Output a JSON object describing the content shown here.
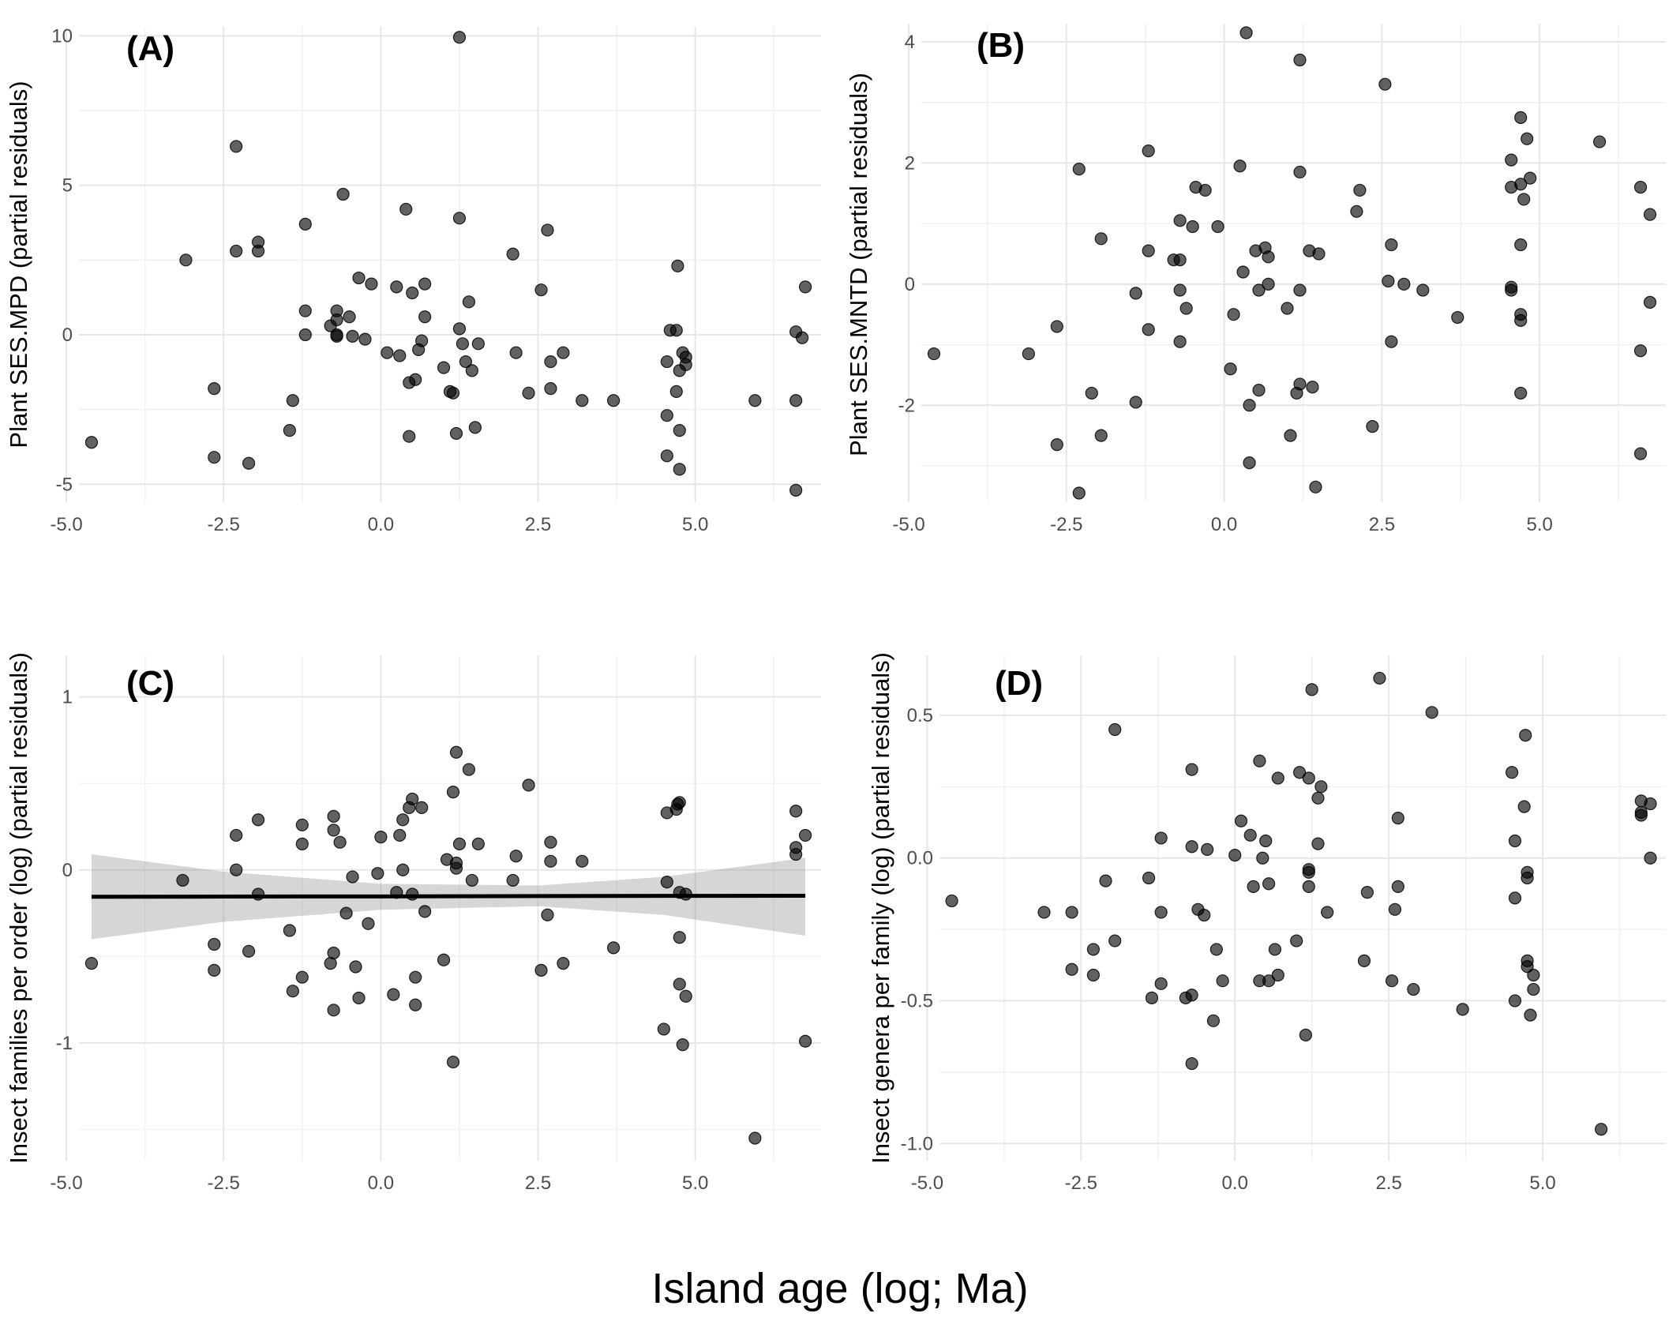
{
  "figure": {
    "xlabel": "Island age (log; Ma)"
  },
  "chart_data": [
    {
      "type": "scatter",
      "panel_label": "(A)",
      "ylabel": "Plant SES.MPD (partial residuals)",
      "xlim": [
        -4.8,
        7.0
      ],
      "ylim": [
        -5.6,
        10.3
      ],
      "xticks": [
        -5.0,
        -2.5,
        0.0,
        2.5,
        5.0
      ],
      "xtick_labels": [
        "-5.0",
        "-2.5",
        "0.0",
        "2.5",
        "5.0"
      ],
      "yticks": [
        -5,
        0,
        5,
        10
      ],
      "ytick_labels": [
        "-5",
        "0",
        "5",
        "10"
      ],
      "grid": true,
      "points": [
        [
          -4.6,
          -3.6
        ],
        [
          -3.1,
          2.5
        ],
        [
          -2.65,
          -1.8
        ],
        [
          -2.65,
          -4.1
        ],
        [
          -2.3,
          6.3
        ],
        [
          -2.3,
          2.8
        ],
        [
          -2.1,
          -4.3
        ],
        [
          -1.95,
          3.1
        ],
        [
          -1.95,
          2.8
        ],
        [
          -1.4,
          -2.2
        ],
        [
          -1.45,
          -3.2
        ],
        [
          -1.2,
          3.7
        ],
        [
          -1.2,
          0.8
        ],
        [
          -1.2,
          0.0
        ],
        [
          -0.8,
          0.3
        ],
        [
          -0.7,
          0.8
        ],
        [
          -0.7,
          0.5
        ],
        [
          -0.7,
          0.0
        ],
        [
          -0.7,
          -0.05
        ],
        [
          -0.6,
          4.7
        ],
        [
          -0.5,
          0.6
        ],
        [
          -0.45,
          -0.05
        ],
        [
          -0.35,
          1.9
        ],
        [
          -0.25,
          -0.15
        ],
        [
          -0.15,
          1.7
        ],
        [
          0.1,
          -0.6
        ],
        [
          0.25,
          1.6
        ],
        [
          0.3,
          -0.7
        ],
        [
          0.4,
          4.2
        ],
        [
          0.45,
          -1.6
        ],
        [
          0.45,
          -3.4
        ],
        [
          0.5,
          1.4
        ],
        [
          0.55,
          -1.5
        ],
        [
          0.6,
          -0.5
        ],
        [
          0.65,
          -0.2
        ],
        [
          0.7,
          0.6
        ],
        [
          0.7,
          1.7
        ],
        [
          1.0,
          -1.1
        ],
        [
          1.1,
          -1.9
        ],
        [
          1.15,
          -1.95
        ],
        [
          1.2,
          -3.3
        ],
        [
          1.25,
          9.95
        ],
        [
          1.25,
          3.9
        ],
        [
          1.25,
          0.2
        ],
        [
          1.3,
          -0.3
        ],
        [
          1.35,
          -0.9
        ],
        [
          1.4,
          1.1
        ],
        [
          1.45,
          -1.2
        ],
        [
          1.5,
          -3.1
        ],
        [
          1.55,
          -0.3
        ],
        [
          2.1,
          2.7
        ],
        [
          2.15,
          -0.6
        ],
        [
          2.35,
          -1.95
        ],
        [
          2.55,
          1.5
        ],
        [
          2.65,
          3.5
        ],
        [
          2.7,
          -1.8
        ],
        [
          2.7,
          -0.9
        ],
        [
          2.9,
          -0.6
        ],
        [
          3.2,
          -2.2
        ],
        [
          3.7,
          -2.2
        ],
        [
          4.55,
          -0.9
        ],
        [
          4.55,
          -2.7
        ],
        [
          4.55,
          -4.05
        ],
        [
          4.6,
          0.15
        ],
        [
          4.7,
          -1.9
        ],
        [
          4.7,
          0.15
        ],
        [
          4.72,
          2.3
        ],
        [
          4.75,
          -3.2
        ],
        [
          4.75,
          -4.5
        ],
        [
          4.75,
          -1.2
        ],
        [
          4.8,
          -0.6
        ],
        [
          4.85,
          -1.0
        ],
        [
          4.85,
          -0.75
        ],
        [
          5.95,
          -2.2
        ],
        [
          6.6,
          -2.2
        ],
        [
          6.6,
          0.1
        ],
        [
          6.6,
          -5.2
        ],
        [
          6.7,
          -0.1
        ],
        [
          6.75,
          1.6
        ]
      ]
    },
    {
      "type": "scatter",
      "panel_label": "(B)",
      "ylabel": "Plant SES.MNTD (partial residuals)",
      "xlim": [
        -4.8,
        7.0
      ],
      "ylim": [
        -3.6,
        4.3
      ],
      "xticks": [
        -5.0,
        -2.5,
        0.0,
        2.5,
        5.0
      ],
      "xtick_labels": [
        "-5.0",
        "-2.5",
        "0.0",
        "2.5",
        "5.0"
      ],
      "yticks": [
        -2,
        0,
        2,
        4
      ],
      "ytick_labels": [
        "-2",
        "0",
        "2",
        "4"
      ],
      "grid": true,
      "points": [
        [
          -4.6,
          -1.15
        ],
        [
          -3.1,
          -1.15
        ],
        [
          -2.65,
          -0.7
        ],
        [
          -2.65,
          -2.65
        ],
        [
          -2.3,
          1.9
        ],
        [
          -2.3,
          -3.45
        ],
        [
          -2.1,
          -1.8
        ],
        [
          -1.95,
          0.75
        ],
        [
          -1.95,
          -2.5
        ],
        [
          -1.4,
          -0.15
        ],
        [
          -1.4,
          -1.95
        ],
        [
          -1.2,
          2.2
        ],
        [
          -1.2,
          0.55
        ],
        [
          -1.2,
          -0.75
        ],
        [
          -0.8,
          0.4
        ],
        [
          -0.7,
          1.05
        ],
        [
          -0.7,
          0.4
        ],
        [
          -0.7,
          -0.1
        ],
        [
          -0.7,
          -0.95
        ],
        [
          -0.6,
          -0.4
        ],
        [
          -0.5,
          0.95
        ],
        [
          -0.45,
          1.6
        ],
        [
          -0.3,
          1.55
        ],
        [
          -0.1,
          0.95
        ],
        [
          0.1,
          -1.4
        ],
        [
          0.15,
          -0.5
        ],
        [
          0.25,
          1.95
        ],
        [
          0.3,
          0.2
        ],
        [
          0.35,
          4.15
        ],
        [
          0.4,
          -2.0
        ],
        [
          0.4,
          -2.95
        ],
        [
          0.5,
          0.55
        ],
        [
          0.55,
          -0.1
        ],
        [
          0.55,
          -1.75
        ],
        [
          0.65,
          0.6
        ],
        [
          0.7,
          0.0
        ],
        [
          0.7,
          0.45
        ],
        [
          1.0,
          -0.4
        ],
        [
          1.05,
          -2.5
        ],
        [
          1.15,
          -1.8
        ],
        [
          1.2,
          -0.1
        ],
        [
          1.2,
          -1.65
        ],
        [
          1.2,
          1.85
        ],
        [
          1.2,
          3.7
        ],
        [
          1.35,
          0.55
        ],
        [
          1.4,
          -1.7
        ],
        [
          1.45,
          -3.35
        ],
        [
          1.5,
          0.5
        ],
        [
          2.1,
          1.2
        ],
        [
          2.15,
          1.55
        ],
        [
          2.35,
          -2.35
        ],
        [
          2.55,
          3.3
        ],
        [
          2.6,
          0.05
        ],
        [
          2.65,
          0.65
        ],
        [
          2.65,
          -0.95
        ],
        [
          2.85,
          0.0
        ],
        [
          3.15,
          -0.1
        ],
        [
          3.7,
          -0.55
        ],
        [
          4.55,
          2.05
        ],
        [
          4.55,
          1.6
        ],
        [
          4.55,
          -0.05
        ],
        [
          4.55,
          -0.1
        ],
        [
          4.7,
          1.65
        ],
        [
          4.7,
          2.75
        ],
        [
          4.7,
          -1.8
        ],
        [
          4.7,
          0.65
        ],
        [
          4.7,
          -0.5
        ],
        [
          4.7,
          -0.6
        ],
        [
          4.75,
          1.4
        ],
        [
          4.8,
          2.4
        ],
        [
          4.85,
          1.75
        ],
        [
          5.95,
          2.35
        ],
        [
          6.6,
          1.6
        ],
        [
          6.6,
          -1.1
        ],
        [
          6.6,
          -2.8
        ],
        [
          6.75,
          1.15
        ],
        [
          6.75,
          -0.3
        ]
      ]
    },
    {
      "type": "scatter",
      "panel_label": "(C)",
      "ylabel": "Insect families per order (log) (partial residuals)",
      "xlim": [
        -4.8,
        7.0
      ],
      "ylim": [
        -1.68,
        1.24
      ],
      "xticks": [
        -5.0,
        -2.5,
        0.0,
        2.5,
        5.0
      ],
      "xtick_labels": [
        "-5.0",
        "-2.5",
        "0.0",
        "2.5",
        "5.0"
      ],
      "yticks": [
        -1,
        0,
        1
      ],
      "ytick_labels": [
        "-1",
        "0",
        "1"
      ],
      "grid": true,
      "fit": {
        "x": [
          -4.6,
          -2.5,
          0.0,
          2.5,
          4.5,
          6.75
        ],
        "y": [
          -0.155,
          -0.154,
          -0.153,
          -0.151,
          -0.15,
          -0.149
        ],
        "lower": [
          -0.4,
          -0.3,
          -0.23,
          -0.21,
          -0.26,
          -0.38
        ],
        "upper": [
          0.09,
          -0.01,
          -0.08,
          -0.09,
          -0.04,
          0.07
        ]
      },
      "points": [
        [
          -4.6,
          -0.54
        ],
        [
          -3.15,
          -0.06
        ],
        [
          -2.65,
          -0.43
        ],
        [
          -2.65,
          -0.58
        ],
        [
          -2.3,
          0.2
        ],
        [
          -2.3,
          0.0
        ],
        [
          -2.1,
          -0.47
        ],
        [
          -1.95,
          0.29
        ],
        [
          -1.95,
          -0.14
        ],
        [
          -1.45,
          -0.35
        ],
        [
          -1.4,
          -0.7
        ],
        [
          -1.25,
          0.26
        ],
        [
          -1.25,
          0.15
        ],
        [
          -1.25,
          -0.62
        ],
        [
          -0.8,
          -0.54
        ],
        [
          -0.75,
          0.31
        ],
        [
          -0.75,
          0.23
        ],
        [
          -0.75,
          -0.48
        ],
        [
          -0.75,
          -0.81
        ],
        [
          -0.65,
          0.16
        ],
        [
          -0.55,
          -0.25
        ],
        [
          -0.45,
          -0.04
        ],
        [
          -0.4,
          -0.56
        ],
        [
          -0.35,
          -0.74
        ],
        [
          -0.2,
          -0.31
        ],
        [
          -0.05,
          -0.02
        ],
        [
          0.0,
          0.19
        ],
        [
          0.2,
          -0.72
        ],
        [
          0.25,
          -0.13
        ],
        [
          0.3,
          0.2
        ],
        [
          0.35,
          0.0
        ],
        [
          0.35,
          0.29
        ],
        [
          0.45,
          0.36
        ],
        [
          0.5,
          -0.14
        ],
        [
          0.5,
          0.41
        ],
        [
          0.55,
          -0.62
        ],
        [
          0.55,
          -0.78
        ],
        [
          0.65,
          0.36
        ],
        [
          0.7,
          -0.24
        ],
        [
          1.0,
          -0.52
        ],
        [
          1.05,
          0.06
        ],
        [
          1.15,
          0.45
        ],
        [
          1.15,
          -1.11
        ],
        [
          1.2,
          0.68
        ],
        [
          1.2,
          0.04
        ],
        [
          1.2,
          0.01
        ],
        [
          1.25,
          0.15
        ],
        [
          1.4,
          0.58
        ],
        [
          1.45,
          -0.06
        ],
        [
          1.55,
          0.15
        ],
        [
          2.1,
          -0.06
        ],
        [
          2.15,
          0.08
        ],
        [
          2.35,
          0.49
        ],
        [
          2.55,
          -0.58
        ],
        [
          2.65,
          -0.26
        ],
        [
          2.7,
          0.16
        ],
        [
          2.7,
          0.05
        ],
        [
          2.9,
          -0.54
        ],
        [
          3.2,
          0.05
        ],
        [
          3.7,
          -0.45
        ],
        [
          4.5,
          -0.92
        ],
        [
          4.55,
          0.33
        ],
        [
          4.55,
          -0.07
        ],
        [
          4.7,
          0.35
        ],
        [
          4.72,
          0.38
        ],
        [
          4.75,
          0.39
        ],
        [
          4.75,
          -0.39
        ],
        [
          4.75,
          -0.66
        ],
        [
          4.75,
          -0.13
        ],
        [
          4.8,
          -1.01
        ],
        [
          4.85,
          -0.73
        ],
        [
          4.85,
          -0.14
        ],
        [
          5.95,
          -1.55
        ],
        [
          6.6,
          0.34
        ],
        [
          6.6,
          0.13
        ],
        [
          6.6,
          0.09
        ],
        [
          6.75,
          0.2
        ],
        [
          6.75,
          -0.99
        ]
      ]
    },
    {
      "type": "scatter",
      "panel_label": "(D)",
      "ylabel": "Insect genera per family (log) (partial residuals)",
      "xlim": [
        -4.8,
        7.0
      ],
      "ylim": [
        -1.06,
        0.71
      ],
      "xticks": [
        -5.0,
        -2.5,
        0.0,
        2.5,
        5.0
      ],
      "xtick_labels": [
        "-5.0",
        "-2.5",
        "0.0",
        "2.5",
        "5.0"
      ],
      "yticks": [
        -1.0,
        -0.5,
        0.0,
        0.5
      ],
      "ytick_labels": [
        "-1.0",
        "-0.5",
        "0.0",
        "0.5"
      ],
      "grid": true,
      "points": [
        [
          -4.6,
          -0.15
        ],
        [
          -3.1,
          -0.19
        ],
        [
          -2.65,
          -0.19
        ],
        [
          -2.65,
          -0.39
        ],
        [
          -2.3,
          -0.32
        ],
        [
          -2.3,
          -0.41
        ],
        [
          -2.1,
          -0.08
        ],
        [
          -1.95,
          0.45
        ],
        [
          -1.95,
          -0.29
        ],
        [
          -1.4,
          -0.07
        ],
        [
          -1.35,
          -0.49
        ],
        [
          -1.2,
          0.07
        ],
        [
          -1.2,
          -0.19
        ],
        [
          -1.2,
          -0.44
        ],
        [
          -0.8,
          -0.49
        ],
        [
          -0.7,
          0.31
        ],
        [
          -0.7,
          0.04
        ],
        [
          -0.7,
          -0.48
        ],
        [
          -0.7,
          -0.72
        ],
        [
          -0.6,
          -0.18
        ],
        [
          -0.5,
          -0.2
        ],
        [
          -0.45,
          0.03
        ],
        [
          -0.35,
          -0.57
        ],
        [
          -0.3,
          -0.32
        ],
        [
          -0.2,
          -0.43
        ],
        [
          0.0,
          0.01
        ],
        [
          0.1,
          0.13
        ],
        [
          0.25,
          0.08
        ],
        [
          0.3,
          -0.1
        ],
        [
          0.4,
          -0.43
        ],
        [
          0.4,
          0.34
        ],
        [
          0.45,
          0.0
        ],
        [
          0.5,
          0.06
        ],
        [
          0.55,
          -0.09
        ],
        [
          0.55,
          -0.43
        ],
        [
          0.65,
          -0.32
        ],
        [
          0.7,
          0.28
        ],
        [
          0.7,
          -0.41
        ],
        [
          1.0,
          -0.29
        ],
        [
          1.05,
          0.3
        ],
        [
          1.15,
          -0.62
        ],
        [
          1.2,
          0.28
        ],
        [
          1.2,
          -0.04
        ],
        [
          1.2,
          -0.05
        ],
        [
          1.2,
          -0.1
        ],
        [
          1.25,
          0.59
        ],
        [
          1.35,
          0.05
        ],
        [
          1.35,
          0.21
        ],
        [
          1.4,
          0.25
        ],
        [
          1.5,
          -0.19
        ],
        [
          2.1,
          -0.36
        ],
        [
          2.15,
          -0.12
        ],
        [
          2.35,
          0.63
        ],
        [
          2.55,
          -0.43
        ],
        [
          2.6,
          -0.18
        ],
        [
          2.65,
          0.14
        ],
        [
          2.65,
          -0.1
        ],
        [
          2.9,
          -0.46
        ],
        [
          3.2,
          0.51
        ],
        [
          3.7,
          -0.53
        ],
        [
          4.5,
          0.3
        ],
        [
          4.55,
          0.06
        ],
        [
          4.55,
          -0.14
        ],
        [
          4.55,
          -0.5
        ],
        [
          4.7,
          0.18
        ],
        [
          4.72,
          0.43
        ],
        [
          4.75,
          -0.36
        ],
        [
          4.75,
          -0.05
        ],
        [
          4.75,
          -0.07
        ],
        [
          4.75,
          -0.38
        ],
        [
          4.8,
          -0.55
        ],
        [
          4.85,
          -0.41
        ],
        [
          4.85,
          -0.46
        ],
        [
          5.95,
          -0.95
        ],
        [
          6.6,
          0.2
        ],
        [
          6.6,
          0.16
        ],
        [
          6.6,
          0.15
        ],
        [
          6.75,
          0.19
        ],
        [
          6.75,
          0.0
        ]
      ]
    }
  ]
}
